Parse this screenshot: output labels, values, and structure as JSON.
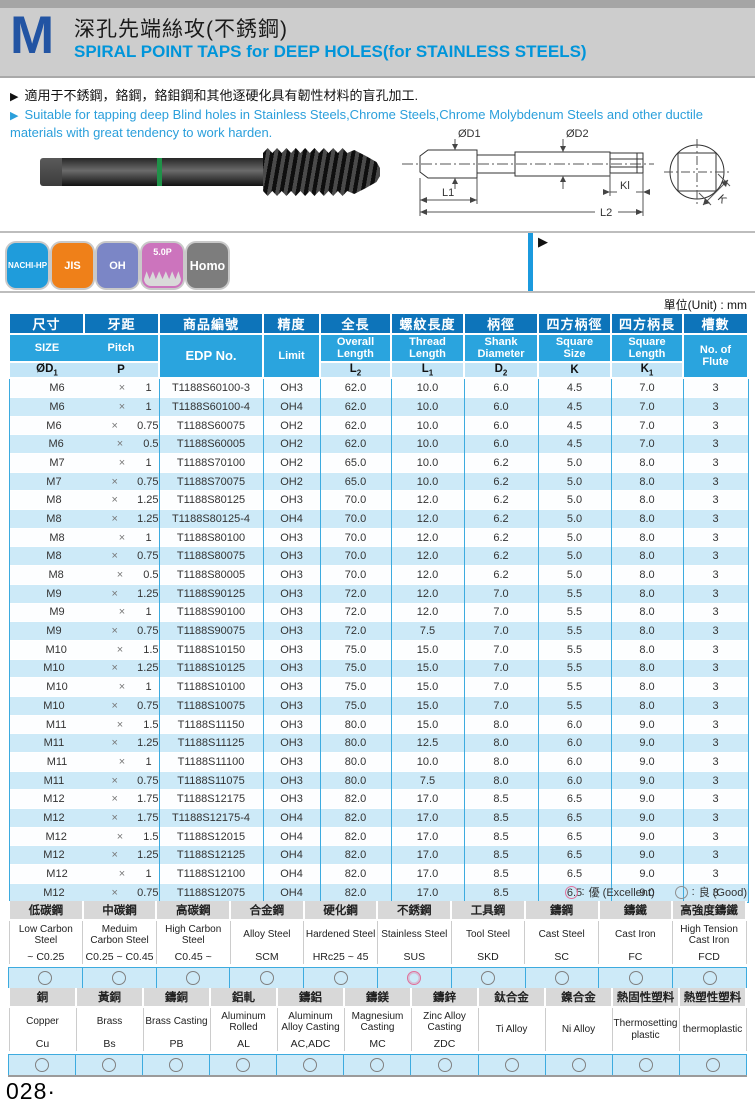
{
  "header": {
    "letter": "M",
    "title_zh": "深孔先端絲攻(不銹鋼)",
    "title_en": "SPIRAL POINT TAPS for DEEP HOLES(for STAINLESS STEELS)",
    "accent_color": "#0095da"
  },
  "intro": {
    "marker": "▶",
    "bullet_zh": "適用于不銹鋼，鉻鋼，鉻鉬鋼和其他逐硬化具有韌性材料的盲孔加工.",
    "bullet_en": "Suitable for tapping deep Blind holes in Stainless Steels,Chrome Steels,Chrome Molybdenum Steels and other ductile materials with great tendency to work harden."
  },
  "diagram": {
    "labels": {
      "d1": "ØD1",
      "d2": "ØD2",
      "l1": "L1",
      "l2": "L2",
      "kl": "Kl",
      "k": "K"
    }
  },
  "badges": [
    {
      "label": "NACHI-HP",
      "color": "#1f9cdb",
      "thread_graphic": false
    },
    {
      "label": "JIS",
      "color": "#ef8019",
      "thread_graphic": false
    },
    {
      "label": "OH",
      "color": "#7b86c6",
      "thread_graphic": false
    },
    {
      "label": "5.0P",
      "color": "#cc74bd",
      "thread_graphic": true
    },
    {
      "label": "Homo",
      "color": "#7d7d7d",
      "thread_graphic": false
    }
  ],
  "pointer_symbol": "▶",
  "unit_note": "單位(Unit) : mm",
  "spec_table": {
    "times_symbol": "×",
    "headers_zh": [
      "尺寸",
      "牙距",
      "商品編號",
      "精度",
      "全長",
      "螺紋長度",
      "柄徑",
      "四方柄徑",
      "四方柄長",
      "槽數"
    ],
    "headers_en": [
      "SIZE",
      "Pitch",
      "EDP No.",
      "Limit",
      "Overall Length",
      "Thread Length",
      "Shank Diameter",
      "Square Size",
      "Square Length",
      "No. of Flute"
    ],
    "headers_sym": [
      "ØD1",
      "P",
      "L2",
      "L1",
      "D2",
      "K",
      "K1"
    ],
    "rows": [
      [
        "M6",
        "1",
        "T1188S60100-3",
        "OH3",
        "62.0",
        "10.0",
        "6.0",
        "4.5",
        "7.0",
        "3"
      ],
      [
        "M6",
        "1",
        "T1188S60100-4",
        "OH4",
        "62.0",
        "10.0",
        "6.0",
        "4.5",
        "7.0",
        "3"
      ],
      [
        "M6",
        "0.75",
        "T1188S60075",
        "OH2",
        "62.0",
        "10.0",
        "6.0",
        "4.5",
        "7.0",
        "3"
      ],
      [
        "M6",
        "0.5",
        "T1188S60005",
        "OH2",
        "62.0",
        "10.0",
        "6.0",
        "4.5",
        "7.0",
        "3"
      ],
      [
        "M7",
        "1",
        "T1188S70100",
        "OH2",
        "65.0",
        "10.0",
        "6.2",
        "5.0",
        "8.0",
        "3"
      ],
      [
        "M7",
        "0.75",
        "T1188S70075",
        "OH2",
        "65.0",
        "10.0",
        "6.2",
        "5.0",
        "8.0",
        "3"
      ],
      [
        "M8",
        "1.25",
        "T1188S80125",
        "OH3",
        "70.0",
        "12.0",
        "6.2",
        "5.0",
        "8.0",
        "3"
      ],
      [
        "M8",
        "1.25",
        "T1188S80125-4",
        "OH4",
        "70.0",
        "12.0",
        "6.2",
        "5.0",
        "8.0",
        "3"
      ],
      [
        "M8",
        "1",
        "T1188S80100",
        "OH3",
        "70.0",
        "12.0",
        "6.2",
        "5.0",
        "8.0",
        "3"
      ],
      [
        "M8",
        "0.75",
        "T1188S80075",
        "OH3",
        "70.0",
        "12.0",
        "6.2",
        "5.0",
        "8.0",
        "3"
      ],
      [
        "M8",
        "0.5",
        "T1188S80005",
        "OH3",
        "70.0",
        "12.0",
        "6.2",
        "5.0",
        "8.0",
        "3"
      ],
      [
        "M9",
        "1.25",
        "T1188S90125",
        "OH3",
        "72.0",
        "12.0",
        "7.0",
        "5.5",
        "8.0",
        "3"
      ],
      [
        "M9",
        "1",
        "T1188S90100",
        "OH3",
        "72.0",
        "12.0",
        "7.0",
        "5.5",
        "8.0",
        "3"
      ],
      [
        "M9",
        "0.75",
        "T1188S90075",
        "OH3",
        "72.0",
        "7.5",
        "7.0",
        "5.5",
        "8.0",
        "3"
      ],
      [
        "M10",
        "1.5",
        "T1188S10150",
        "OH3",
        "75.0",
        "15.0",
        "7.0",
        "5.5",
        "8.0",
        "3"
      ],
      [
        "M10",
        "1.25",
        "T1188S10125",
        "OH3",
        "75.0",
        "15.0",
        "7.0",
        "5.5",
        "8.0",
        "3"
      ],
      [
        "M10",
        "1",
        "T1188S10100",
        "OH3",
        "75.0",
        "15.0",
        "7.0",
        "5.5",
        "8.0",
        "3"
      ],
      [
        "M10",
        "0.75",
        "T1188S10075",
        "OH3",
        "75.0",
        "15.0",
        "7.0",
        "5.5",
        "8.0",
        "3"
      ],
      [
        "M11",
        "1.5",
        "T1188S11150",
        "OH3",
        "80.0",
        "15.0",
        "8.0",
        "6.0",
        "9.0",
        "3"
      ],
      [
        "M11",
        "1.25",
        "T1188S11125",
        "OH3",
        "80.0",
        "12.5",
        "8.0",
        "6.0",
        "9.0",
        "3"
      ],
      [
        "M11",
        "1",
        "T1188S11100",
        "OH3",
        "80.0",
        "10.0",
        "8.0",
        "6.0",
        "9.0",
        "3"
      ],
      [
        "M11",
        "0.75",
        "T1188S11075",
        "OH3",
        "80.0",
        "7.5",
        "8.0",
        "6.0",
        "9.0",
        "3"
      ],
      [
        "M12",
        "1.75",
        "T1188S12175",
        "OH3",
        "82.0",
        "17.0",
        "8.5",
        "6.5",
        "9.0",
        "3"
      ],
      [
        "M12",
        "1.75",
        "T1188S12175-4",
        "OH4",
        "82.0",
        "17.0",
        "8.5",
        "6.5",
        "9.0",
        "3"
      ],
      [
        "M12",
        "1.5",
        "T1188S12015",
        "OH4",
        "82.0",
        "17.0",
        "8.5",
        "6.5",
        "9.0",
        "3"
      ],
      [
        "M12",
        "1.25",
        "T1188S12125",
        "OH4",
        "82.0",
        "17.0",
        "8.5",
        "6.5",
        "9.0",
        "3"
      ],
      [
        "M12",
        "1",
        "T1188S12100",
        "OH4",
        "82.0",
        "17.0",
        "8.5",
        "6.5",
        "9.0",
        "3"
      ],
      [
        "M12",
        "0.75",
        "T1188S12075",
        "OH4",
        "82.0",
        "17.0",
        "8.5",
        "6.5",
        "9.0",
        "3"
      ]
    ]
  },
  "legend": {
    "excellent_label": "優 (Excellent)",
    "good_label": "良 (Good)",
    "excellent_color": "#e0709a",
    "good_color": "#8f8f8f",
    "colon": ":"
  },
  "material_table_1": {
    "columns": [
      {
        "zh": "低碳鋼",
        "en": "Low Carbon Steel",
        "code": "~ C0.25",
        "rating": "good"
      },
      {
        "zh": "中碳鋼",
        "en": "Meduim Carbon Steel",
        "code": "C0.25 ~ C0.45",
        "rating": "good"
      },
      {
        "zh": "高碳鋼",
        "en": "High Carbon Steel",
        "code": "C0.45 ~",
        "rating": "good"
      },
      {
        "zh": "合金鋼",
        "en": "Alloy Steel",
        "code": "SCM",
        "rating": "good"
      },
      {
        "zh": "硬化鋼",
        "en": "Hardened Steel",
        "code": "HRc25 ~ 45",
        "rating": "good"
      },
      {
        "zh": "不銹鋼",
        "en": "Stainless Steel",
        "code": "SUS",
        "rating": "excellent"
      },
      {
        "zh": "工具鋼",
        "en": "Tool Steel",
        "code": "SKD",
        "rating": "good"
      },
      {
        "zh": "鑄鋼",
        "en": "Cast Steel",
        "code": "SC",
        "rating": "good"
      },
      {
        "zh": "鑄鐵",
        "en": "Cast Iron",
        "code": "FC",
        "rating": "good"
      },
      {
        "zh": "高強度鑄鐵",
        "en": "High Tension Cast Iron",
        "code": "FCD",
        "rating": "good"
      }
    ]
  },
  "material_table_2": {
    "columns": [
      {
        "zh": "銅",
        "en": "Copper",
        "code": "Cu",
        "rating": "good"
      },
      {
        "zh": "黃銅",
        "en": "Brass",
        "code": "Bs",
        "rating": "good"
      },
      {
        "zh": "鑄銅",
        "en": "Brass Casting",
        "code": "PB",
        "rating": "good"
      },
      {
        "zh": "鋁軋",
        "en": "Aluminum Rolled",
        "code": "AL",
        "rating": "good"
      },
      {
        "zh": "鑄鋁",
        "en": "Aluminum Alloy Casting",
        "code": "AC,ADC",
        "rating": "good"
      },
      {
        "zh": "鑄鎂",
        "en": "Magnesium Casting",
        "code": "MC",
        "rating": "good"
      },
      {
        "zh": "鑄鋅",
        "en": "Zinc Alloy Casting",
        "code": "ZDC",
        "rating": "good"
      },
      {
        "zh": "鈦合金",
        "en": "Ti Alloy",
        "code": null,
        "rating": "good"
      },
      {
        "zh": "鎳合金",
        "en": "Ni Alloy",
        "code": null,
        "rating": "good"
      },
      {
        "zh": "熱固性塑料",
        "en": "Thermosetting plastic",
        "code": null,
        "rating": "good"
      },
      {
        "zh": "熱塑性塑料",
        "en": "thermoplastic",
        "code": null,
        "rating": "good"
      }
    ]
  },
  "page_number": "028·"
}
